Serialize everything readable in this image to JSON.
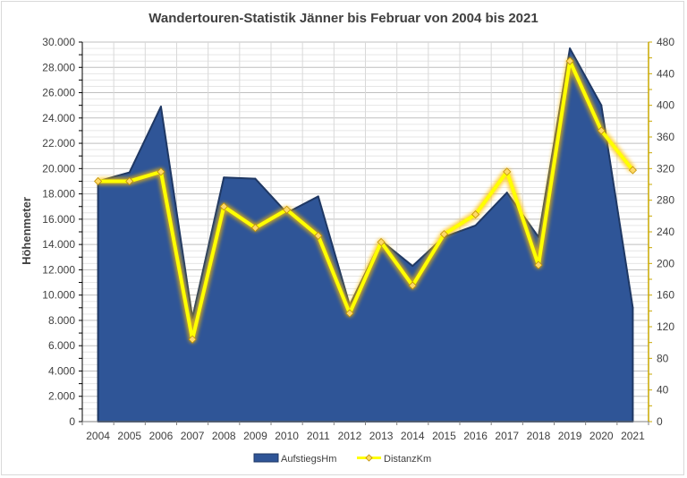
{
  "chart_data": {
    "type": "area",
    "title": "Wandertouren-Statistik Jänner bis Februar von 2004 bis 2021",
    "xlabel": "",
    "ylabel": "Höhenmeter",
    "y2label": "",
    "categories": [
      "2004",
      "2005",
      "2006",
      "2007",
      "2008",
      "2009",
      "2010",
      "2011",
      "2012",
      "2013",
      "2014",
      "2015",
      "2016",
      "2017",
      "2018",
      "2019",
      "2020",
      "2021"
    ],
    "ylim": [
      0,
      30000
    ],
    "y2lim": [
      0,
      480
    ],
    "y_ticks": [
      "0",
      "2.000",
      "4.000",
      "6.000",
      "8.000",
      "10.000",
      "12.000",
      "14.000",
      "16.000",
      "18.000",
      "20.000",
      "22.000",
      "24.000",
      "26.000",
      "28.000",
      "30.000"
    ],
    "y2_ticks": [
      "0",
      "40",
      "80",
      "120",
      "160",
      "200",
      "240",
      "280",
      "320",
      "360",
      "400",
      "440",
      "480"
    ],
    "grid": true,
    "legend_position": "bottom",
    "series": [
      {
        "name": "AufstiegsHm",
        "type": "area",
        "axis": "left",
        "color": "#2f5597",
        "values": [
          19000,
          19700,
          24900,
          8200,
          19300,
          19200,
          16500,
          17800,
          9200,
          14300,
          12300,
          14600,
          15500,
          18100,
          14600,
          29500,
          25000,
          9000
        ]
      },
      {
        "name": "DistanzKm",
        "type": "line",
        "axis": "right",
        "color": "#ffff00",
        "values": [
          304,
          304,
          316,
          104,
          272,
          245,
          268,
          235,
          137,
          227,
          172,
          237,
          262,
          316,
          198,
          456,
          368,
          318
        ]
      }
    ]
  }
}
